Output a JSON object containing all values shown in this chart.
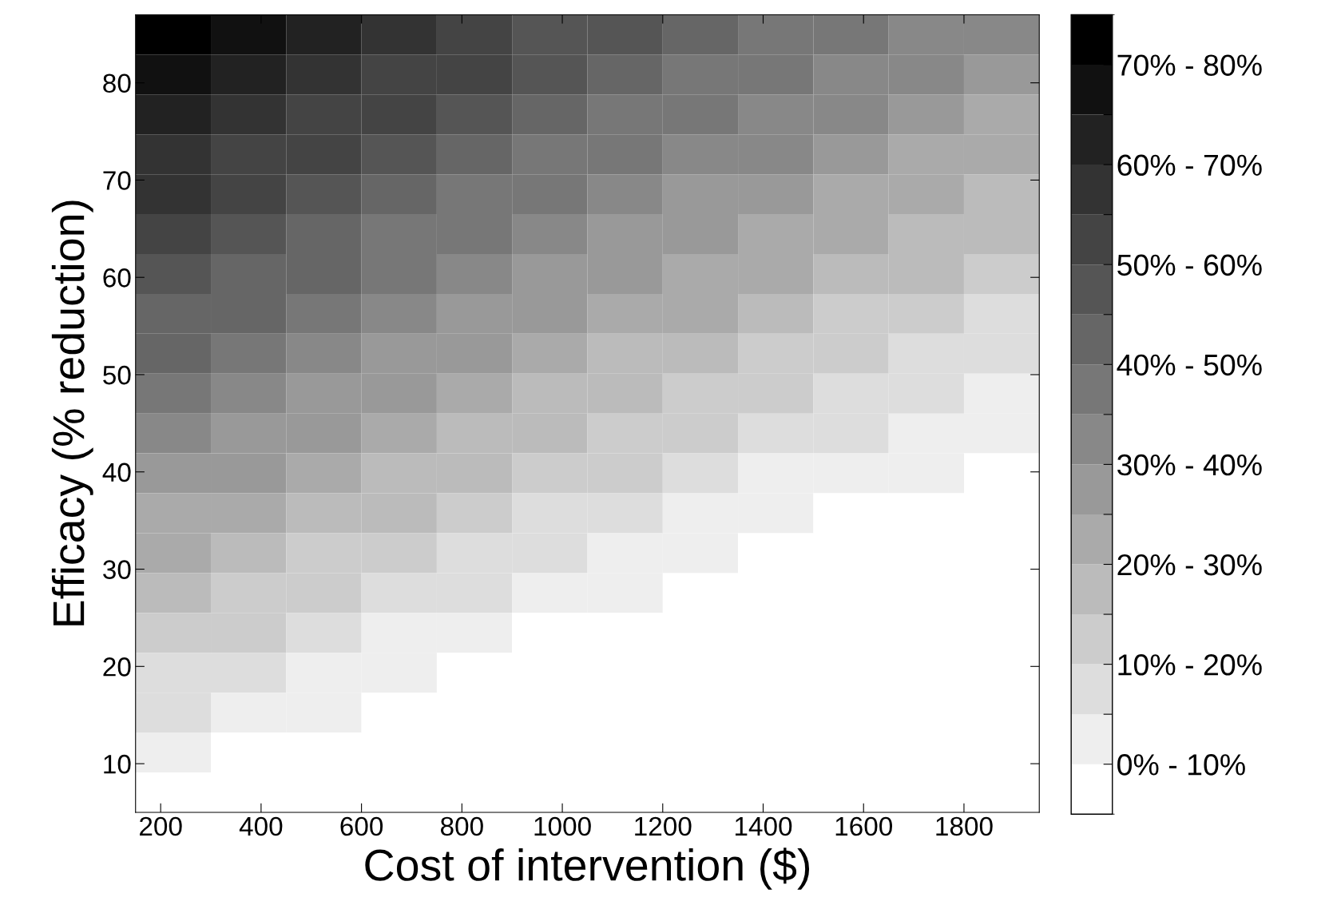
{
  "chart_data": {
    "type": "heatmap",
    "xlabel": "Cost of intervention ($)",
    "ylabel": "Efficacy (% reduction)",
    "x": [
      225,
      375,
      525,
      675,
      825,
      975,
      1125,
      1275,
      1425,
      1575,
      1725,
      1875
    ],
    "y": [
      84.95,
      80.85,
      76.75,
      72.65,
      68.55,
      64.45,
      60.35,
      56.25,
      52.15,
      48.05,
      43.95,
      39.85,
      35.75,
      31.65,
      27.55,
      23.45,
      19.35,
      15.25,
      11.15,
      7.05
    ],
    "xlim": [
      150,
      1950
    ],
    "ylim": [
      5,
      87
    ],
    "xticks": [
      200,
      400,
      600,
      800,
      1000,
      1200,
      1400,
      1600,
      1800
    ],
    "yticks": [
      10,
      20,
      30,
      40,
      50,
      60,
      70,
      80
    ],
    "clim": [
      0,
      80
    ],
    "cticks": [
      {
        "value": 5,
        "label": "0% - 10%"
      },
      {
        "value": 10,
        "label": null
      },
      {
        "value": 15,
        "label": "10% - 20%"
      },
      {
        "value": 20,
        "label": null
      },
      {
        "value": 25,
        "label": "20% - 30%"
      },
      {
        "value": 30,
        "label": null
      },
      {
        "value": 35,
        "label": "30% - 40%"
      },
      {
        "value": 40,
        "label": null
      },
      {
        "value": 45,
        "label": "40% - 50%"
      },
      {
        "value": 50,
        "label": null
      },
      {
        "value": 55,
        "label": "50% - 60%"
      },
      {
        "value": 60,
        "label": null
      },
      {
        "value": 65,
        "label": "60% - 70%"
      },
      {
        "value": 70,
        "label": null
      },
      {
        "value": 75,
        "label": "70% - 80%"
      }
    ],
    "grid": false,
    "cells": [
      [
        75,
        71,
        66,
        62,
        58,
        54,
        51,
        47,
        44,
        41,
        38,
        35
      ],
      [
        71,
        67,
        63,
        58,
        55,
        51,
        48,
        44,
        41,
        38,
        35,
        32
      ],
      [
        68,
        63,
        59,
        55,
        51,
        48,
        44,
        41,
        38,
        35,
        32,
        29
      ],
      [
        64,
        59,
        55,
        51,
        48,
        44,
        41,
        38,
        35,
        32,
        29,
        26
      ],
      [
        60,
        56,
        52,
        48,
        44,
        41,
        38,
        34,
        31,
        29,
        26,
        23
      ],
      [
        56,
        52,
        48,
        44,
        41,
        37,
        34,
        31,
        28,
        25,
        23,
        20
      ],
      [
        52,
        48,
        45,
        41,
        37,
        34,
        31,
        28,
        25,
        22,
        20,
        17
      ],
      [
        48,
        45,
        41,
        37,
        34,
        31,
        28,
        25,
        22,
        19,
        17,
        14
      ],
      [
        45,
        41,
        37,
        34,
        31,
        27,
        24,
        22,
        19,
        16,
        14,
        11
      ],
      [
        41,
        37,
        34,
        30,
        27,
        24,
        21,
        18,
        16,
        13,
        11,
        8
      ],
      [
        37,
        33,
        30,
        27,
        24,
        21,
        18,
        15,
        13,
        10,
        8,
        5
      ],
      [
        33,
        30,
        26,
        23,
        20,
        17,
        15,
        12,
        9,
        7,
        5,
        2
      ],
      [
        29,
        26,
        23,
        20,
        17,
        14,
        11,
        9,
        6,
        4,
        2,
        0
      ],
      [
        26,
        22,
        19,
        16,
        13,
        10,
        8,
        5,
        3,
        1,
        0,
        0
      ],
      [
        22,
        19,
        15,
        13,
        10,
        7,
        5,
        2,
        0,
        0,
        0,
        0
      ],
      [
        18,
        15,
        12,
        9,
        6,
        4,
        1,
        0,
        0,
        0,
        0,
        0
      ],
      [
        14,
        11,
        8,
        6,
        3,
        0,
        0,
        0,
        0,
        0,
        0,
        0
      ],
      [
        10,
        7,
        5,
        2,
        0,
        0,
        0,
        0,
        0,
        0,
        0,
        0
      ],
      [
        6,
        4,
        1,
        0,
        0,
        0,
        0,
        0,
        0,
        0,
        0,
        0
      ],
      [
        3,
        0,
        0,
        0,
        0,
        0,
        0,
        0,
        0,
        0,
        0,
        0
      ]
    ]
  }
}
